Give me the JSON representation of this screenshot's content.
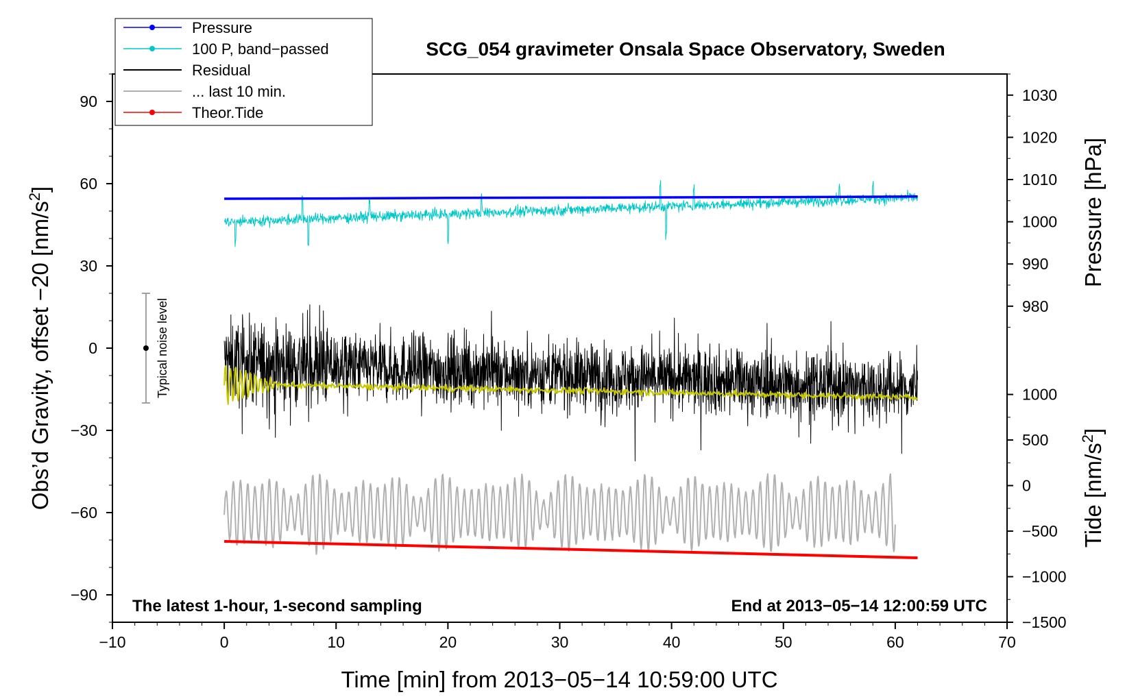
{
  "chart_data": {
    "type": "line",
    "title": "SCG_054 gravimeter Onsala Space Observatory, Sweden",
    "xlabel": "Time [min] from 2013−05−14 10:59:00 UTC",
    "ylabel_left_main": "Obs’d Gravity, offset −20 [nm/s",
    "ylabel_left_sup": "2",
    "ylabel_left_end": "]",
    "ylabel_right_pressure": "Pressure [hPa]",
    "ylabel_right_tide_main": "Tide [nm/s",
    "ylabel_right_tide_sup": "2",
    "ylabel_right_tide_end": "]",
    "xlim": [
      -10,
      70
    ],
    "ylim_left": [
      -100,
      100
    ],
    "x_ticks": [
      -10,
      0,
      10,
      20,
      30,
      40,
      50,
      60,
      70
    ],
    "x_tick_labels": [
      "−10",
      "0",
      "10",
      "20",
      "30",
      "40",
      "50",
      "60",
      "70"
    ],
    "left_ticks": [
      90,
      60,
      30,
      0,
      -30,
      -60,
      -90
    ],
    "left_tick_labels": [
      "90",
      "60",
      "30",
      "0",
      "−30",
      "−60",
      "−90"
    ],
    "pressure_ticks": [
      1030,
      1020,
      1010,
      1000,
      990,
      980
    ],
    "pressure_tick_labels": [
      "1030",
      "1020",
      "1010",
      "1000",
      "990",
      "980"
    ],
    "pressure_to_left": {
      "value_a": 1030,
      "left_a": 92.3,
      "value_b": 980,
      "left_a_minus": 15.3
    },
    "tide_ticks": [
      1000,
      500,
      0,
      -500,
      -1000,
      -1500
    ],
    "tide_tick_labels": [
      "1000",
      "500",
      "0",
      "−500",
      "−1000",
      "−1500"
    ],
    "tide_to_left": {
      "value_a": 1000,
      "left_a": -16.9,
      "value_b": -1500,
      "left_b": -100
    },
    "note_left": "The latest 1-hour, 1-second sampling",
    "note_right": "End at 2013−05−14 12:00:59 UTC",
    "noise_bar": {
      "x": -7,
      "y_center": 0,
      "y_low": -20,
      "y_high": 20,
      "label": "Typical noise level"
    },
    "legend": [
      {
        "label": "Pressure",
        "color": "#0000ff",
        "marker": true
      },
      {
        "label": "100 P, band−passed",
        "color": "#00c8c8",
        "marker": true
      },
      {
        "label": "Residual",
        "color": "#000000",
        "marker": false
      },
      {
        "label": "... last 10 min.",
        "color": "#b0b0b0",
        "marker": false
      },
      {
        "label": "Theor.Tide",
        "color": "#ff0000",
        "marker": true
      }
    ],
    "series": [
      {
        "name": "Pressure",
        "axis": "left",
        "color": "#0000ff",
        "width": 3.5,
        "x": [
          0,
          10,
          20,
          30,
          40,
          50,
          62
        ],
        "y": [
          54.5,
          54.6,
          54.8,
          54.9,
          55.0,
          55.1,
          55.3
        ]
      },
      {
        "name": "100 P, band-passed",
        "axis": "left",
        "color": "#00c8c8",
        "width": 1,
        "generated": true,
        "x_range": [
          0,
          62
        ],
        "trend": [
          46,
          55
        ],
        "amplitude": 2.5,
        "spikes": [
          [
            1,
            -8
          ],
          [
            7,
            8
          ],
          [
            7.5,
            -9
          ],
          [
            13,
            7
          ],
          [
            20,
            -11
          ],
          [
            23,
            5
          ],
          [
            39,
            8
          ],
          [
            39.5,
            -10
          ],
          [
            42,
            7
          ],
          [
            55,
            5
          ],
          [
            58,
            5
          ]
        ]
      },
      {
        "name": "Residual",
        "axis": "left",
        "color": "#000000",
        "width": 1,
        "generated": true,
        "x_range": [
          0,
          62
        ],
        "trend": [
          -5,
          -15
        ],
        "amplitude": 16
      },
      {
        "name": "Smoothed residual",
        "axis": "left",
        "color": "#c8c800",
        "width": 2,
        "generated": true,
        "x_range": [
          0,
          62
        ],
        "trend": [
          -13,
          -18
        ],
        "amplitude": 2
      },
      {
        "name": "... last 10 min.",
        "axis": "left",
        "color": "#b0b0b0",
        "width": 2,
        "generated": true,
        "x_range": [
          0,
          60
        ],
        "center": -60,
        "amplitude": 12
      },
      {
        "name": "Theor.Tide",
        "axis": "left",
        "color": "#ff0000",
        "width": 4,
        "x": [
          0,
          10,
          20,
          30,
          40,
          50,
          62
        ],
        "y": [
          -70.5,
          -71.4,
          -72.4,
          -73.3,
          -74.3,
          -75.3,
          -76.5
        ]
      }
    ]
  }
}
